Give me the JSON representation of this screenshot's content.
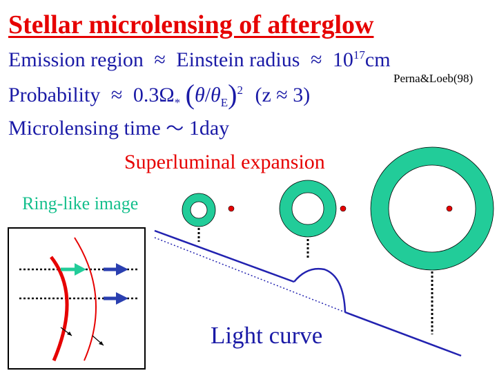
{
  "title": "Stellar microlensing of afterglow",
  "line1": {
    "label": "Emission region",
    "approx1": "≈",
    "mid": "Einstein radius",
    "approx2": "≈",
    "value_base": "10",
    "value_exp": "17",
    "unit": "cm"
  },
  "reference": "Perna&Loeb(98)",
  "line2": {
    "label": "Probability",
    "approx": "≈",
    "coef": "0.3Ω",
    "sub_star": "*",
    "paren_open": "(",
    "theta": "θ",
    "slash": "/",
    "theta_e": "θ",
    "sub_e": "E",
    "paren_close": ")",
    "exp2": "2",
    "condition": "(z ≈ 3)"
  },
  "line3": {
    "label": "Microlensing time",
    "tilde": "～",
    "value": "1day"
  },
  "superluminal_label": "Superluminal expansion",
  "ring_label": "Ring-like image",
  "lightcurve_label": "Light curve",
  "colors": {
    "title_red": "#e60000",
    "text_blue": "#1a1aa6",
    "ring_green": "#22cc99",
    "ring_label_green": "#15bf8c",
    "curve_blue": "#2222b0"
  }
}
